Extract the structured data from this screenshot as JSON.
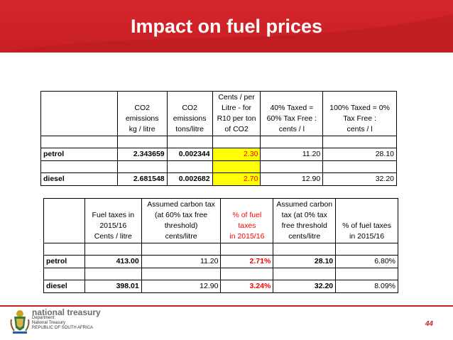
{
  "slide": {
    "title": "Impact on fuel prices",
    "page_number": "44",
    "colors": {
      "banner": "#c71f25",
      "highlight": "#ffff00",
      "red_text": "#ff0000"
    }
  },
  "table1": {
    "headers": [
      "",
      "CO2 emissions kg / litre",
      "CO2 emissions tons/litre",
      "Cents / per Litre - for R10 per ton of CO2",
      "40% Taxed = 60% Tax Free : cents / l",
      "100% Taxed = 0% Tax Free : cents / l"
    ],
    "header_lines": [
      [],
      [
        "CO2",
        "emissions",
        "kg / litre"
      ],
      [
        "CO2",
        "emissions",
        "tons/litre"
      ],
      [
        "Cents / per",
        "Litre - for",
        "R10 per ton",
        "of CO2"
      ],
      [
        "40% Taxed =",
        "60% Tax Free :",
        "cents / l"
      ],
      [
        "100% Taxed = 0%",
        "Tax Free :",
        "cents / l"
      ]
    ],
    "rows": [
      [
        "petrol",
        "2.343659",
        "0.002344",
        "2.30",
        "11.20",
        "28.10"
      ],
      [
        "diesel",
        "2.681548",
        "0.002682",
        "2.70",
        "12.90",
        "32.20"
      ]
    ]
  },
  "table2": {
    "header_lines": [
      [],
      [
        "Fuel taxes in",
        "2015/16",
        "Cents / litre"
      ],
      [
        "Assumed carbon tax",
        "(at 60% tax free",
        "threshold)",
        "cents/litre"
      ],
      [
        "% of fuel taxes",
        "in 2015/16"
      ],
      [
        "Assumed carbon",
        "tax (at 0% tax",
        "free threshold",
        "cents/litre"
      ],
      [
        "% of fuel taxes",
        "in 2015/16"
      ]
    ],
    "rows": [
      [
        "petrol",
        "413.00",
        "11.20",
        "2.71%",
        "28.10",
        "6.80%"
      ],
      [
        "diesel",
        "398.01",
        "12.90",
        "3.24%",
        "32.20",
        "8.09%"
      ]
    ]
  },
  "footer": {
    "org_name": "national treasury",
    "dept_lines": [
      "Department:",
      "National Treasury",
      "REPUBLIC OF SOUTH AFRICA"
    ]
  }
}
